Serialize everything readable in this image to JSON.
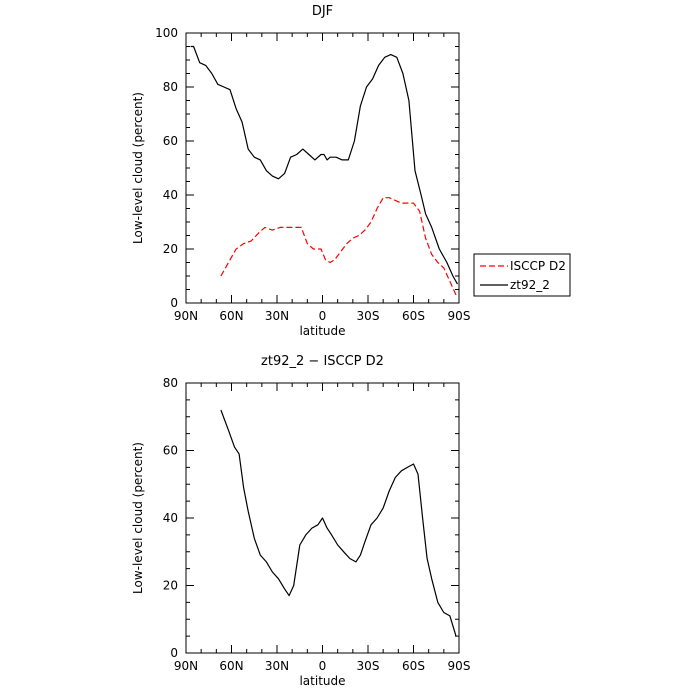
{
  "chart_data": [
    {
      "type": "line",
      "title": "DJF",
      "xlabel": "latitude",
      "ylabel": "Low-level cloud (percent)",
      "xlim": [
        90,
        -90
      ],
      "ylim": [
        0,
        100
      ],
      "xticks": [
        90,
        60,
        30,
        0,
        -30,
        -60,
        -90
      ],
      "xtick_labels": [
        "90N",
        "60N",
        "30N",
        "0",
        "30S",
        "60S",
        "90S"
      ],
      "yticks": [
        0,
        20,
        40,
        60,
        80,
        100
      ],
      "ytick_labels": [
        "0",
        "20",
        "40",
        "60",
        "80",
        "100"
      ],
      "legend": "right-outside",
      "series": [
        {
          "name": "ISCCP D2",
          "color": "#ff0000",
          "dash": "dashed",
          "x": [
            67,
            62,
            57,
            52,
            47,
            42,
            38,
            33,
            28,
            23,
            18,
            14,
            10,
            6,
            1,
            -2,
            -5,
            -8,
            -12,
            -16,
            -20,
            -24,
            -28,
            -32,
            -36,
            -40,
            -44,
            -48,
            -52,
            -56,
            -60,
            -64,
            -68,
            -72,
            -76,
            -80,
            -84,
            -88
          ],
          "y": [
            10,
            15,
            20,
            22,
            23,
            26,
            28,
            27,
            28,
            28,
            28,
            28,
            22,
            20,
            20,
            16,
            15,
            16,
            19,
            22,
            24,
            25,
            27,
            30,
            35,
            39,
            39,
            38,
            37,
            37,
            37,
            34,
            24,
            18,
            15,
            13,
            8,
            3
          ]
        },
        {
          "name": "zt92_2",
          "color": "#000000",
          "dash": "solid",
          "x": [
            87,
            85,
            81,
            77,
            73,
            69,
            65,
            61,
            57,
            53,
            49,
            45,
            41,
            37,
            33,
            29,
            25,
            21,
            17,
            13,
            9,
            5,
            1,
            -1,
            -3,
            -5,
            -7,
            -9,
            -13,
            -17,
            -21,
            -25,
            -29,
            -33,
            -37,
            -41,
            -45,
            -49,
            -53,
            -57,
            -61,
            -65,
            -68,
            -72,
            -77,
            -82,
            -86,
            -89
          ],
          "y": [
            95,
            95,
            89,
            88,
            85,
            81,
            80,
            79,
            72,
            67,
            57,
            54,
            53,
            49,
            47,
            46,
            48,
            54,
            55,
            57,
            55,
            53,
            55,
            55,
            53,
            54,
            54,
            54,
            53,
            53,
            60,
            73,
            80,
            83,
            88,
            91,
            92,
            91,
            85,
            75,
            49,
            40,
            33,
            28,
            20,
            15,
            10,
            7
          ]
        }
      ]
    },
    {
      "type": "line",
      "title": "zt92_2 − ISCCP D2",
      "xlabel": "latitude",
      "ylabel": "Low-level cloud (percent)",
      "xlim": [
        90,
        -90
      ],
      "ylim": [
        0,
        80
      ],
      "xticks": [
        90,
        60,
        30,
        0,
        -30,
        -60,
        -90
      ],
      "xtick_labels": [
        "90N",
        "60N",
        "30N",
        "0",
        "30S",
        "60S",
        "90S"
      ],
      "yticks": [
        0,
        20,
        40,
        60,
        80
      ],
      "ytick_labels": [
        "0",
        "20",
        "40",
        "60",
        "80"
      ],
      "series": [
        {
          "color": "#000000",
          "dash": "solid",
          "x": [
            67,
            62,
            58,
            55,
            52,
            49,
            45,
            41,
            37,
            33,
            29,
            25,
            22,
            19,
            15,
            11,
            7,
            3,
            0,
            -3,
            -6,
            -10,
            -14,
            -18,
            -22,
            -25,
            -28,
            -32,
            -36,
            -40,
            -44,
            -48,
            -52,
            -56,
            -60,
            -63,
            -66,
            -69,
            -72,
            -76,
            -80,
            -84,
            -88
          ],
          "y": [
            72,
            66,
            61,
            59,
            49,
            42,
            34,
            29,
            27,
            24,
            22,
            19,
            17,
            20,
            32,
            35,
            37,
            38,
            40,
            37,
            35,
            32,
            30,
            28,
            27,
            29,
            33,
            38,
            40,
            43,
            48,
            52,
            54,
            55,
            56,
            53,
            40,
            28,
            22,
            15,
            12,
            11,
            5
          ]
        }
      ]
    }
  ]
}
